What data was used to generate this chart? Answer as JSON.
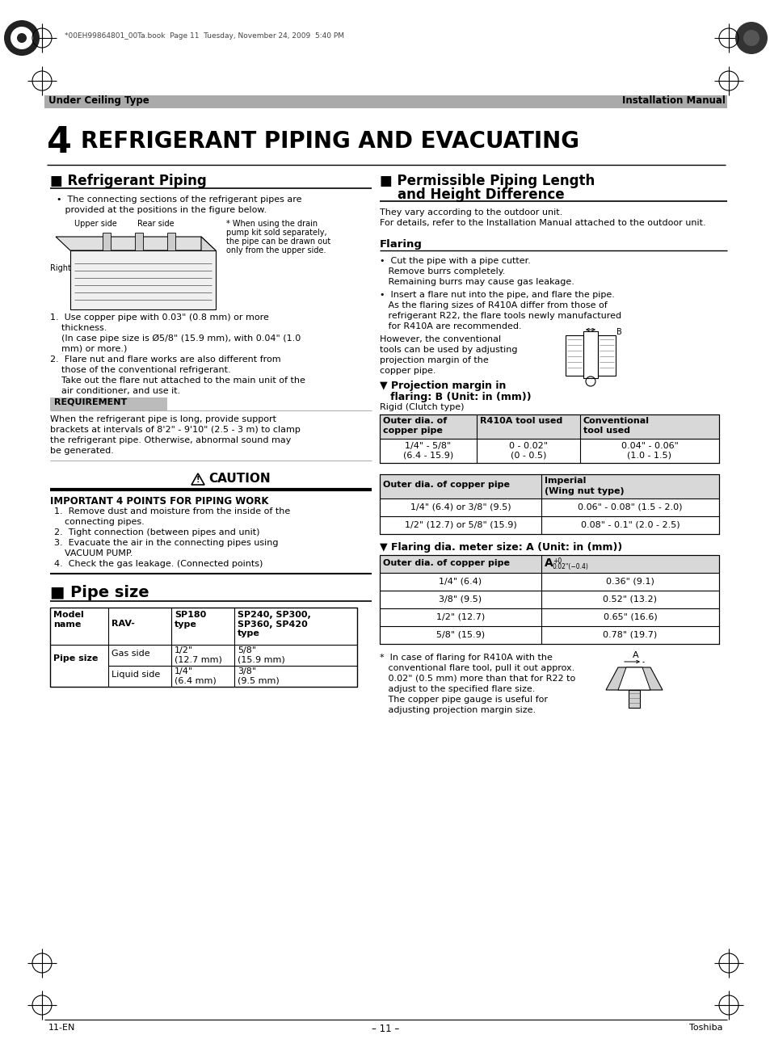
{
  "page_title_num": "4",
  "page_title_text": "REFRIGERANT PIPING AND EVACUATING",
  "header_left": "Under Ceiling Type",
  "header_right": "Installation Manual",
  "header_file": "*00EH99864801_00Ta.book  Page 11  Tuesday, November 24, 2009  5:40 PM",
  "footer_left": "11-EN",
  "footer_center": "– 11 –",
  "footer_right": "Toshiba",
  "section1_title": "Refrigerant Piping",
  "section2_title_line1": "Permissible Piping Length",
  "section2_title_line2": "and Height Difference",
  "section2_text1": "They vary according to the outdoor unit.",
  "section2_text2": "For details, refer to the Installation Manual attached to the outdoor unit.",
  "flaring_title": "Flaring",
  "flaring_bullet1_line1": "•  Cut the pipe with a pipe cutter.",
  "flaring_bullet1_line2": "   Remove burrs completely.",
  "flaring_bullet1_line3": "   Remaining burrs may cause gas leakage.",
  "flaring_bullet2_line1": "•  Insert a flare nut into the pipe, and flare the pipe.",
  "flaring_bullet2_line2": "   As the flaring sizes of R410A differ from those of",
  "flaring_bullet2_line3": "   refrigerant R22, the flare tools newly manufactured",
  "flaring_bullet2_line4": "   for R410A are recommended.",
  "flaring_text3_line1": "However, the conventional",
  "flaring_text3_line2": "tools can be used by adjusting",
  "flaring_text3_line3": "projection margin of the",
  "flaring_text3_line4": "copper pipe.",
  "projection_title_line1": "▼ Projection margin in",
  "projection_title_line2": "   flaring: B (Unit: in (mm))",
  "projection_subtitle": "Rigid (Clutch type)",
  "table1_h1": "Outer dia. of\ncopper pipe",
  "table1_h2": "R410A tool used",
  "table1_h3": "Conventional\ntool used",
  "table1_r1c1": "1/4\" - 5/8\"\n(6.4 - 15.9)",
  "table1_r1c2": "0 - 0.02\"\n(0 - 0.5)",
  "table1_r1c3": "0.04\" - 0.06\"\n(1.0 - 1.5)",
  "table2_h1": "Outer dia. of copper pipe",
  "table2_h2_line1": "Imperial",
  "table2_h2_line2": "(Wing nut type)",
  "table2_r1c1": "1/4\" (6.4) or 3/8\" (9.5)",
  "table2_r1c2": "0.06\" - 0.08\" (1.5 - 2.0)",
  "table2_r2c1": "1/2\" (12.7) or 5/8\" (15.9)",
  "table2_r2c2": "0.08\" - 0.1\" (2.0 - 2.5)",
  "fdia_title": "▼ Flaring dia. meter size: A (Unit: in (mm))",
  "table3_h1": "Outer dia. of copper pipe",
  "table3_rows": [
    [
      "1/4\" (6.4)",
      "0.36\" (9.1)"
    ],
    [
      "3/8\" (9.5)",
      "0.52\" (13.2)"
    ],
    [
      "1/2\" (12.7)",
      "0.65\" (16.6)"
    ],
    [
      "5/8\" (15.9)",
      "0.78\" (19.7)"
    ]
  ],
  "footnote_lines": [
    "*  In case of flaring for R410A with the",
    "   conventional flare tool, pull it out approx.",
    "   0.02\" (0.5 mm) more than that for R22 to",
    "   adjust to the specified flare size.",
    "   The copper pipe gauge is useful for",
    "   adjusting projection margin size."
  ],
  "requirement_title": "REQUIREMENT",
  "requirement_text_lines": [
    "When the refrigerant pipe is long, provide support",
    "brackets at intervals of 8'2\" - 9'10\" (2.5 - 3 m) to clamp",
    "the refrigerant pipe. Otherwise, abnormal sound may",
    "be generated."
  ],
  "caution_title": "CAUTION",
  "caution_subtitle": "IMPORTANT 4 POINTS FOR PIPING WORK",
  "caution_list": [
    [
      "Remove dust and moisture from the inside of the",
      "connecting pipes."
    ],
    [
      "Tight connection (between pipes and unit)"
    ],
    [
      "Evacuate the air in the connecting pipes using",
      "VACUUM PUMP."
    ],
    [
      "Check the gas leakage. (Connected points)"
    ]
  ],
  "pipe_size_title": "Pipe size",
  "bg_color": "#ffffff",
  "gray_header": "#aaaaaa",
  "req_bg": "#bbbbbb",
  "table_gray": "#d8d8d8"
}
